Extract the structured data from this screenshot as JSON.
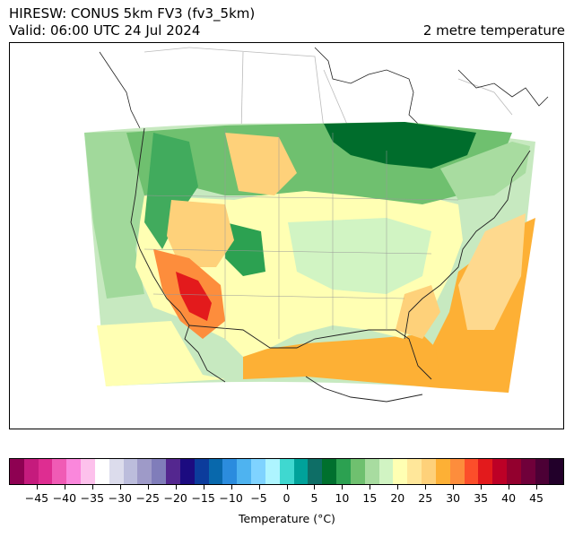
{
  "header": {
    "title_line1": "HIRESW: CONUS 5km FV3 (fv3_5km)",
    "title_line2": "Valid: 06:00 UTC 24 Jul 2024",
    "field_name": "2 metre temperature"
  },
  "map": {
    "description_icon": "temperature-map",
    "region_colors": {
      "ocean_warm": "#fdb035",
      "ocean_mild": "#fed98e",
      "cool_green_light": "#a1d99b",
      "green_mid": "#41ab5d",
      "green_dark": "#006d2c",
      "pale_green": "#c7e9c0",
      "pale_yellow": "#ffffb2",
      "hot_red": "#e31a1c",
      "hot_orange": "#fc4e2a"
    }
  },
  "colorbar": {
    "colors": [
      "#8e0152",
      "#c51b7d",
      "#de2d91",
      "#f05bb5",
      "#fa87dc",
      "#fdc1ec",
      "#ffffff",
      "#dcdcec",
      "#bcbddc",
      "#9e9ac8",
      "#807dba",
      "#54278f",
      "#1c0b80",
      "#0c3c9c",
      "#0868ac",
      "#2b8cde",
      "#4eb3f0",
      "#7fd3ff",
      "#aef5ff",
      "#3fd8d0",
      "#00a29a",
      "#0e6e66",
      "#00702e",
      "#2ca151",
      "#6fc06f",
      "#a8dca0",
      "#d1f4c3",
      "#ffffb3",
      "#ffe79a",
      "#fed17a",
      "#fdb035",
      "#fd8d3c",
      "#fc4e2a",
      "#e31a1c",
      "#bd0026",
      "#93002e",
      "#70003a",
      "#4c0035",
      "#22002a"
    ],
    "tick_labels": [
      "−45",
      "−40",
      "−35",
      "−30",
      "−25",
      "−20",
      "−15",
      "−10",
      "−5",
      "0",
      "5",
      "10",
      "15",
      "20",
      "25",
      "30",
      "35",
      "40",
      "45"
    ],
    "range": [
      -50,
      50
    ],
    "label": "Temperature (°C)"
  }
}
